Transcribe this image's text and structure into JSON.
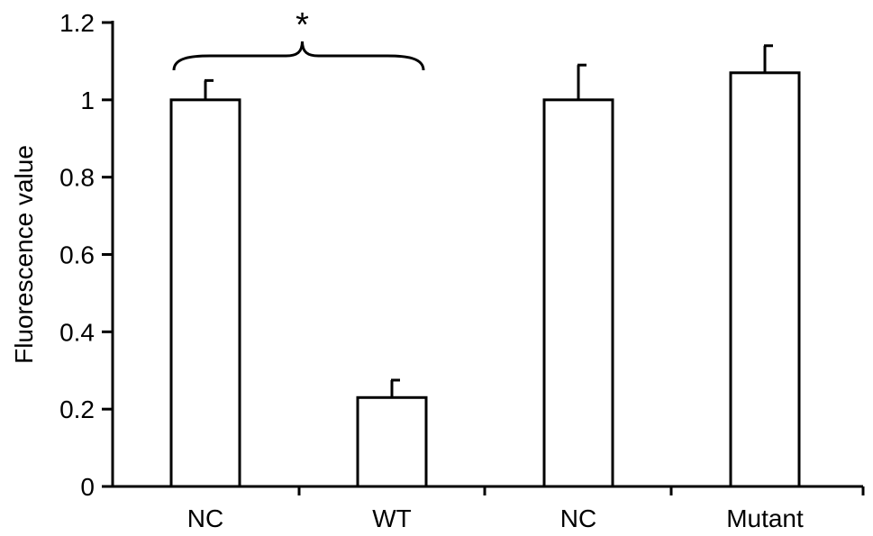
{
  "chart_data": {
    "type": "bar",
    "categories": [
      "NC",
      "WT",
      "NC",
      "Mutant"
    ],
    "values": [
      1.0,
      0.23,
      1.0,
      1.07
    ],
    "errors": [
      0.05,
      0.045,
      0.09,
      0.07
    ],
    "ylabel": "Fluorescence value",
    "xlabel": "",
    "ylim": [
      0,
      1.2
    ],
    "yticks": [
      0,
      0.2,
      0.4,
      0.6,
      0.8,
      1,
      1.2
    ],
    "ytick_labels": [
      "0",
      "0.2",
      "0.4",
      "0.6",
      "0.8",
      "1",
      "1.2"
    ],
    "grid": false,
    "bar_fill": "#ffffff",
    "bar_edge": "#000000",
    "annotations": [
      {
        "text": "*",
        "type": "significance-brace",
        "from_category": 0,
        "to_category": 1
      }
    ]
  }
}
